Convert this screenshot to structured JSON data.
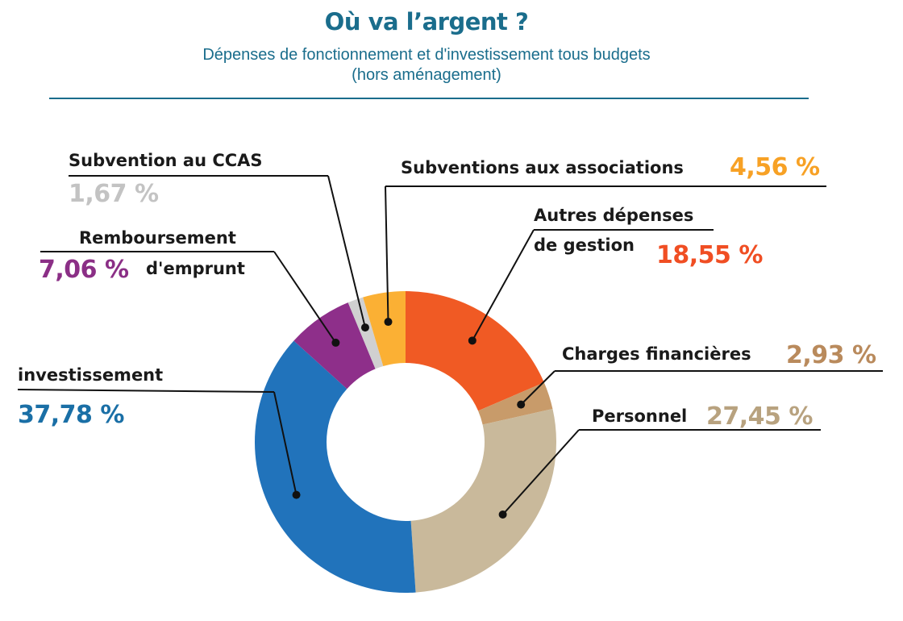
{
  "title": "Où va l’argent ?",
  "subtitle_line1": "Dépenses de fonctionnement et d'investissement tous budgets",
  "subtitle_line2": "(hors aménagement)",
  "chart_data": {
    "type": "pie",
    "variant": "donut",
    "title": "Où va l’argent ?",
    "subtitle": "Dépenses de fonctionnement et d'investissement tous budgets (hors aménagement)",
    "unit": "%",
    "slices": [
      {
        "label": "Autres dépenses de gestion",
        "label_lines": [
          "Autres dépenses",
          "de gestion"
        ],
        "value": 18.55,
        "display": "18,55 %",
        "color": "#f05a24",
        "text_color": "#f04e23"
      },
      {
        "label": "Charges financières",
        "label_lines": [
          "Charges financières"
        ],
        "value": 2.93,
        "display": "2,93 %",
        "color": "#c89b6a",
        "text_color": "#b98a5c"
      },
      {
        "label": "Personnel",
        "label_lines": [
          "Personnel"
        ],
        "value": 27.45,
        "display": "27,45 %",
        "color": "#c9b99b",
        "text_color": "#b8a27f"
      },
      {
        "label": "investissement",
        "label_lines": [
          "investissement"
        ],
        "value": 37.78,
        "display": "37,78 %",
        "color": "#2173bb",
        "text_color": "#1a6fa6"
      },
      {
        "label": "Remboursement d'emprunt",
        "label_lines": [
          "Remboursement",
          "d'emprunt"
        ],
        "value": 7.06,
        "display": "7,06 %",
        "color": "#8e2f8a",
        "text_color": "#8b2f86"
      },
      {
        "label": "Subvention au CCAS",
        "label_lines": [
          "Subvention au CCAS"
        ],
        "value": 1.67,
        "display": "1,67 %",
        "color": "#d0d0d0",
        "text_color": "#c3c3c3"
      },
      {
        "label": "Subventions aux associations",
        "label_lines": [
          "Subventions aux associations"
        ],
        "value": 4.56,
        "display": "4,56 %",
        "color": "#fbb034",
        "text_color": "#f7a125"
      }
    ]
  }
}
